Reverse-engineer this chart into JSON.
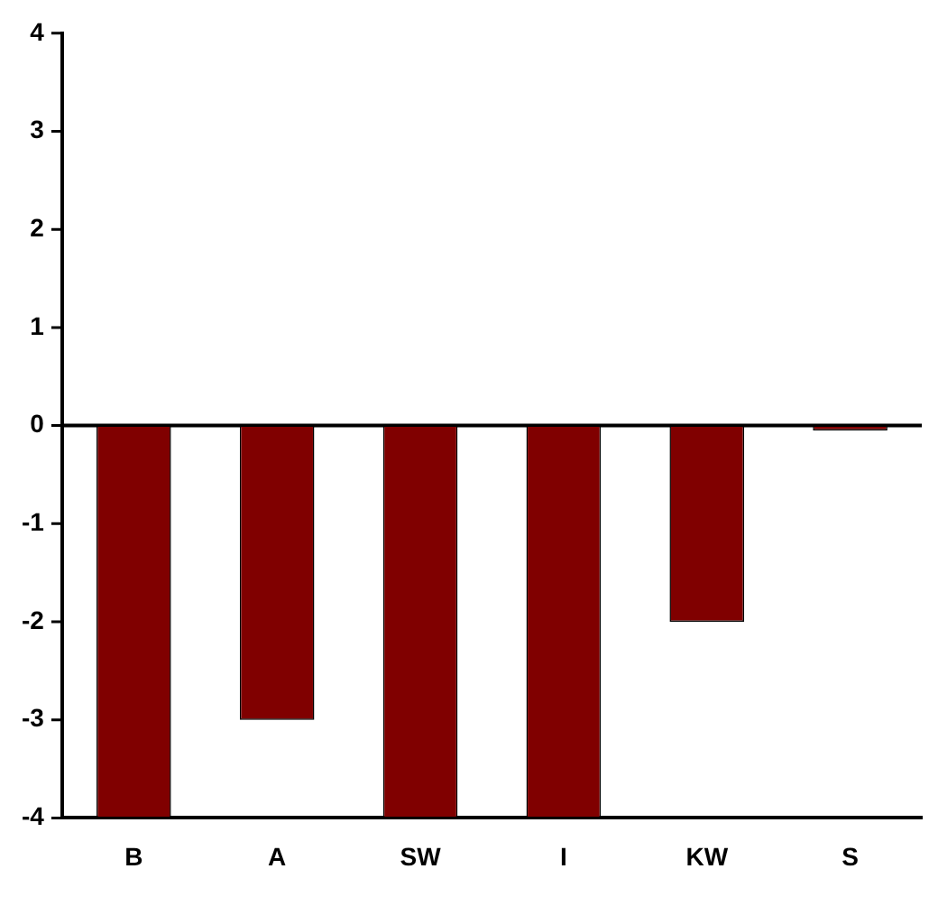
{
  "chart_data": {
    "type": "bar",
    "categories": [
      "B",
      "A",
      "SW",
      "I",
      "KW",
      "S"
    ],
    "values": [
      -4,
      -3,
      -4,
      -4,
      -2,
      -0.05
    ],
    "color": "#800000",
    "ref_lines": [
      {
        "axis": "y",
        "value": 0,
        "color": "#000000"
      }
    ],
    "ylim": [
      -4,
      4
    ],
    "yticks": [
      -4,
      -3,
      -2,
      -1,
      0,
      1,
      2,
      3,
      4
    ],
    "grid": false,
    "legend": false
  }
}
